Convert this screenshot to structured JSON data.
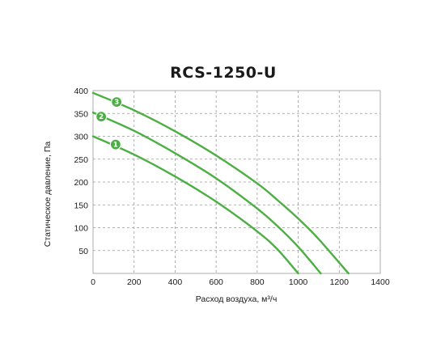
{
  "chart_data": {
    "type": "line",
    "title": "RCS-1250-U",
    "xlabel": "Расход воздуха, м³/ч",
    "ylabel": "Статическое давление, Па",
    "xlim": [
      0,
      1400
    ],
    "ylim": [
      0,
      400
    ],
    "x_ticks": [
      "0",
      "200",
      "400",
      "600",
      "800",
      "1000",
      "1200",
      "1400"
    ],
    "y_ticks": [
      "50",
      "100",
      "150",
      "200",
      "250",
      "300",
      "350",
      "400"
    ],
    "x_tick_values": [
      0,
      200,
      400,
      600,
      800,
      1000,
      1200,
      1400
    ],
    "y_tick_values": [
      50,
      100,
      150,
      200,
      250,
      300,
      350,
      400
    ],
    "grid": true,
    "legend": "none",
    "series_color": "#4caf43",
    "series": [
      {
        "label": "1",
        "label_at": [
          110,
          282
        ],
        "x": [
          0,
          200,
          400,
          600,
          800,
          900,
          1000
        ],
        "y": [
          300,
          260,
          212,
          157,
          92,
          52,
          0
        ]
      },
      {
        "label": "2",
        "label_at": [
          40,
          343
        ],
        "x": [
          0,
          200,
          400,
          600,
          800,
          900,
          1000,
          1110
        ],
        "y": [
          352,
          312,
          263,
          208,
          142,
          103,
          58,
          0
        ]
      },
      {
        "label": "3",
        "label_at": [
          115,
          375
        ],
        "x": [
          0,
          200,
          400,
          600,
          800,
          900,
          1000,
          1100,
          1245
        ],
        "y": [
          395,
          357,
          311,
          258,
          197,
          160,
          120,
          75,
          0
        ]
      }
    ]
  }
}
